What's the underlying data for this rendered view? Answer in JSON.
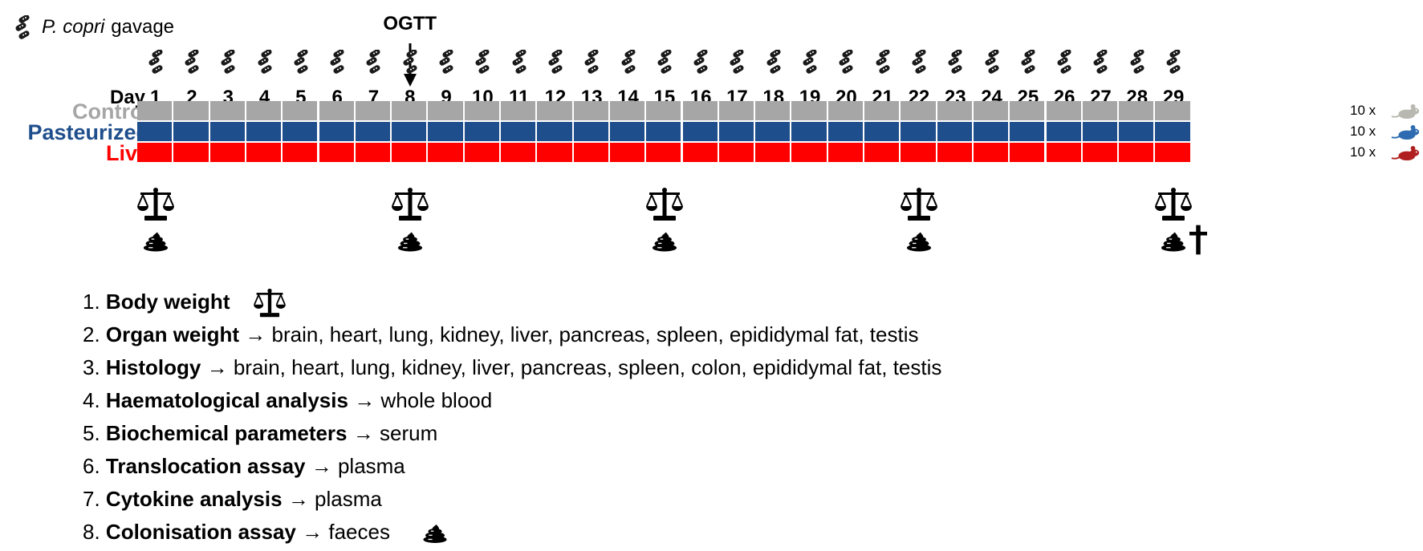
{
  "legend": {
    "species": "P. copri",
    "action": "gavage",
    "icon": "bacteria-icon"
  },
  "ogtt": {
    "label": "OGTT",
    "day": 8
  },
  "timeline": {
    "day_label": "Day",
    "days": [
      "1",
      "2",
      "3",
      "4",
      "5",
      "6",
      "7",
      "8",
      "9",
      "10",
      "11",
      "12",
      "13",
      "14",
      "15",
      "16",
      "17",
      "18",
      "19",
      "20",
      "21",
      "22",
      "23",
      "24",
      "25",
      "26",
      "27",
      "28",
      "29"
    ],
    "gavage_every_day": true
  },
  "groups": [
    {
      "name": "Control",
      "count": "10 x",
      "color": "#a6a6a6",
      "mouse_color": "#b8b8b0"
    },
    {
      "name": "Pasteurized",
      "count": "10 x",
      "color": "#1f4e8c",
      "mouse_color": "#2e6bb0"
    },
    {
      "name": "Live",
      "count": "10 x",
      "color": "#ff0000",
      "mouse_color": "#b02020"
    }
  ],
  "sampling": {
    "days": [
      1,
      8,
      15,
      22,
      29
    ],
    "icons": [
      "scale-icon",
      "faeces-icon"
    ],
    "sacrifice_day": 29,
    "sacrifice_icon": "cross-icon"
  },
  "analyses": [
    {
      "num": "1.",
      "name": "Body weight",
      "arrow": "",
      "target": "",
      "icon": "scale-icon"
    },
    {
      "num": "2.",
      "name": "Organ weight",
      "arrow": "→",
      "target": "brain, heart, lung, kidney, liver, pancreas, spleen, epididymal fat, testis",
      "icon": ""
    },
    {
      "num": "3.",
      "name": "Histology",
      "arrow": "→",
      "target": "brain, heart, lung, kidney, liver, pancreas, spleen, colon, epididymal fat, testis",
      "icon": ""
    },
    {
      "num": "4.",
      "name": "Haematological analysis",
      "arrow": "→",
      "target": "whole blood",
      "icon": ""
    },
    {
      "num": "5.",
      "name": "Biochemical parameters",
      "arrow": "→",
      "target": "serum",
      "icon": ""
    },
    {
      "num": "6.",
      "name": "Translocation assay",
      "arrow": "→",
      "target": "plasma",
      "icon": ""
    },
    {
      "num": "7.",
      "name": "Cytokine analysis",
      "arrow": "→",
      "target": "plasma",
      "icon": ""
    },
    {
      "num": "8.",
      "name": "Colonisation assay",
      "arrow": "→",
      "target": "faeces",
      "icon": "faeces-icon"
    }
  ]
}
